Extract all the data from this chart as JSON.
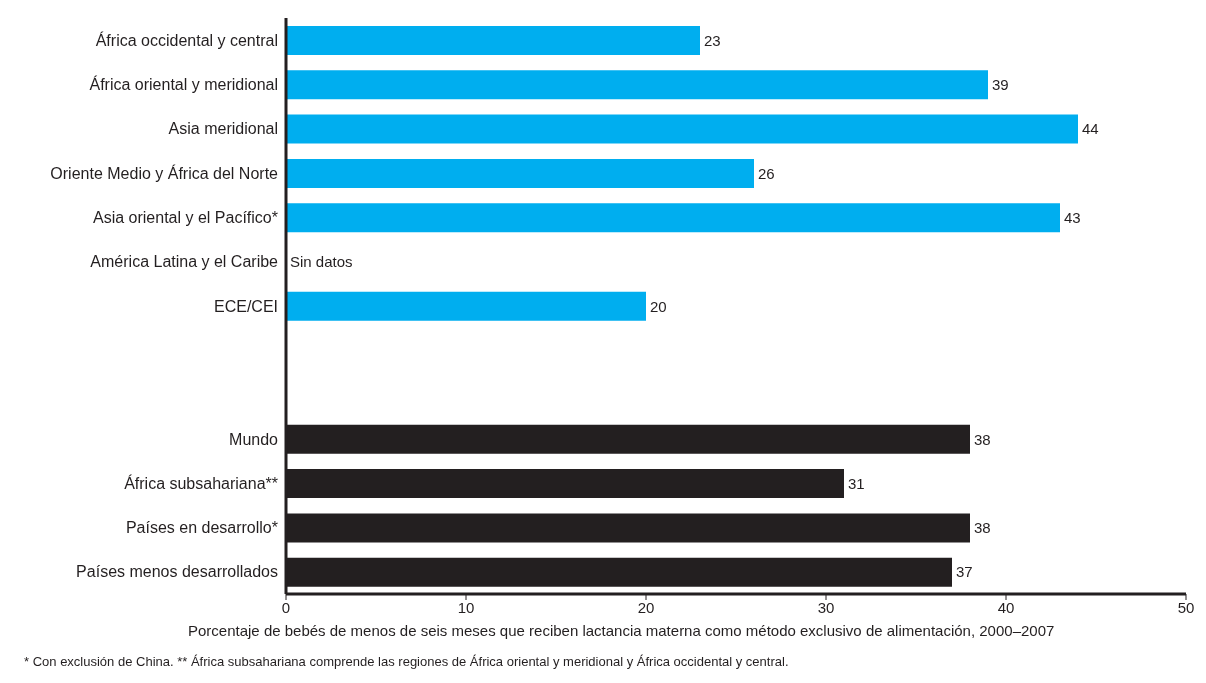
{
  "chart_data": {
    "type": "bar",
    "orientation": "horizontal",
    "categories": [
      "África occidental y central",
      "África oriental y meridional",
      "Asia meridional",
      "Oriente Medio y África del Norte",
      "Asia oriental y el Pacífico*",
      "América Latina y el Caribe",
      "ECE/CEI",
      null,
      null,
      "Mundo",
      "África subsahariana**",
      "Países en desarrollo*",
      "Países menos desarrollados"
    ],
    "values": [
      23,
      39,
      44,
      26,
      43,
      null,
      20,
      null,
      null,
      38,
      31,
      38,
      37
    ],
    "value_labels": [
      "23",
      "39",
      "44",
      "26",
      "43",
      "Sin datos",
      "20",
      null,
      null,
      "38",
      "31",
      "38",
      "37"
    ],
    "colors": [
      "#00aeef",
      "#00aeef",
      "#00aeef",
      "#00aeef",
      "#00aeef",
      "#00aeef",
      "#00aeef",
      "#00aeef",
      "#00aeef",
      "#231f20",
      "#231f20",
      "#231f20",
      "#231f20"
    ],
    "xlim": [
      0,
      50
    ],
    "xticks": [
      0,
      10,
      20,
      30,
      40,
      50
    ],
    "xlabel": "Porcentaje de bebés de menos de seis meses que reciben lactancia materna como método exclusivo de alimentación, 2000–2007",
    "annotations": [
      "* Con exclusión de China. ** África subsahariana comprende las regiones de África oriental y meridional y África occidental y central."
    ],
    "grid": false,
    "legend": false
  }
}
